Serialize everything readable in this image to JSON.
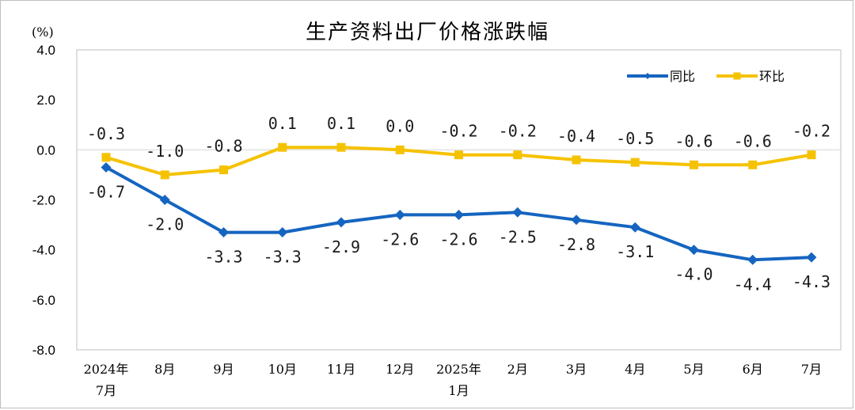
{
  "chart_data": {
    "type": "line",
    "title": "生产资料出厂价格涨跌幅",
    "unit": "(%)",
    "categories": [
      [
        "2024年",
        "7月"
      ],
      [
        "8月"
      ],
      [
        "9月"
      ],
      [
        "10月"
      ],
      [
        "11月"
      ],
      [
        "12月"
      ],
      [
        "2025年",
        "1月"
      ],
      [
        "2月"
      ],
      [
        "3月"
      ],
      [
        "4月"
      ],
      [
        "5月"
      ],
      [
        "6月"
      ],
      [
        "7月"
      ]
    ],
    "ylim": [
      -8.0,
      4.0
    ],
    "yticks": [
      "4.0",
      "2.0",
      "0.0",
      "-2.0",
      "-4.0",
      "-6.0",
      "-8.0"
    ],
    "series": [
      {
        "name": "同比",
        "color": "#1565c0",
        "marker": "diamond",
        "values": [
          -0.7,
          -2.0,
          -3.3,
          -3.3,
          -2.9,
          -2.6,
          -2.6,
          -2.5,
          -2.8,
          -3.1,
          -4.0,
          -4.4,
          -4.3
        ],
        "labels": [
          "-0.7",
          "-2.0",
          "-3.3",
          "-3.3",
          "-2.9",
          "-2.6",
          "-2.6",
          "-2.5",
          "-2.8",
          "-3.1",
          "-4.0",
          "-4.4",
          "-4.3"
        ],
        "label_position": "below"
      },
      {
        "name": "环比",
        "color": "#f5c200",
        "marker": "square",
        "values": [
          -0.3,
          -1.0,
          -0.8,
          0.1,
          0.1,
          0.0,
          -0.2,
          -0.2,
          -0.4,
          -0.5,
          -0.6,
          -0.6,
          -0.2
        ],
        "labels": [
          "-0.3",
          "-1.0",
          "-0.8",
          "0.1",
          "0.1",
          "0.0",
          "-0.2",
          "-0.2",
          "-0.4",
          "-0.5",
          "-0.6",
          "-0.6",
          "-0.2"
        ],
        "label_position": "above"
      }
    ],
    "legend_position": "top-right",
    "grid": false,
    "zero_line": true
  }
}
